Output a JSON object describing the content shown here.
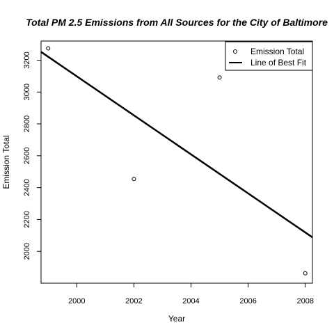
{
  "chart_data": {
    "type": "scatter",
    "title": "Total PM 2.5 Emissions from All Sources for the City of Baltimore",
    "xlabel": "Year",
    "ylabel": "Emission Total",
    "xlim": [
      1998.75,
      2008.25
    ],
    "ylim": [
      1800,
      3320
    ],
    "x_ticks": [
      2000,
      2002,
      2004,
      2006,
      2008
    ],
    "y_ticks": [
      2000,
      2200,
      2400,
      2600,
      2800,
      3000,
      3200
    ],
    "series": [
      {
        "name": "Emission Total",
        "kind": "points",
        "x": [
          1999,
          2002,
          2005,
          2008
        ],
        "y": [
          3274,
          2454,
          3091,
          1862
        ]
      },
      {
        "name": "Line of Best Fit",
        "kind": "line",
        "x": [
          1998.75,
          2008.25
        ],
        "y": [
          3252,
          2088
        ]
      }
    ],
    "legend_position": "top-right",
    "grid": false
  }
}
